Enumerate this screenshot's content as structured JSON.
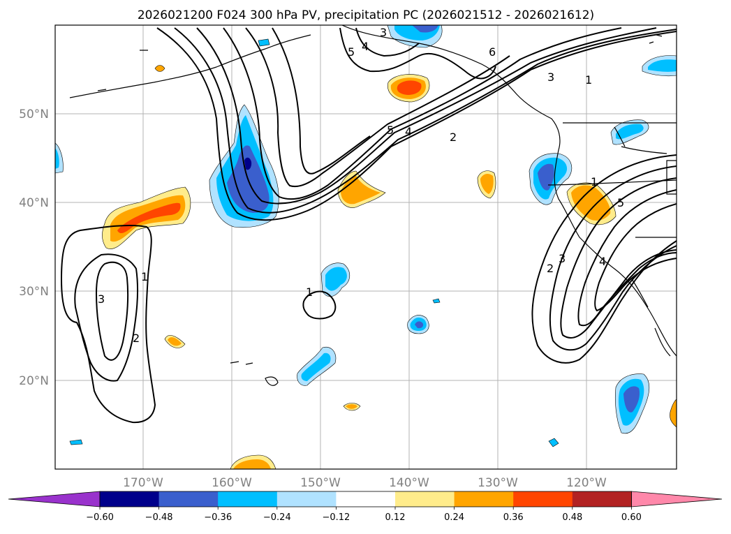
{
  "title": "2026021200 F024 300 hPa PV, precipitation PC (2026021512 - 2026021612)",
  "map": {
    "lat_labels": [
      "50°N",
      "40°N",
      "30°N",
      "20°N"
    ],
    "lon_labels": [
      "170°W",
      "160°W",
      "150°W",
      "140°W",
      "130°W",
      "120°W"
    ]
  },
  "contour_labels": {
    "nw_3": "3",
    "nw_4": "4",
    "nw_6": "6",
    "nw_5": "5",
    "jet_5": "5",
    "jet_4": "4",
    "jet_2": "2",
    "jet_3": "3",
    "jet_1": "1",
    "w_3": "3",
    "w_1": "1",
    "w_2": "2",
    "c_1": "1",
    "e_2": "2",
    "e_3": "3",
    "e_4": "4",
    "e_5": "5",
    "e_1": "1"
  },
  "colorbar": {
    "ticks": [
      "−0.60",
      "−0.48",
      "−0.36",
      "−0.24",
      "−0.12",
      "0.12",
      "0.24",
      "0.36",
      "0.48",
      "0.60"
    ],
    "colors": {
      "under": "#9932cc",
      "levels": [
        "#00008b",
        "#3a5fcd",
        "#00bfff",
        "#b0e2ff",
        "#ffffff",
        "#ffec8b",
        "#ffa500",
        "#ff4500",
        "#b22222"
      ],
      "over": "#ff88aa"
    }
  }
}
